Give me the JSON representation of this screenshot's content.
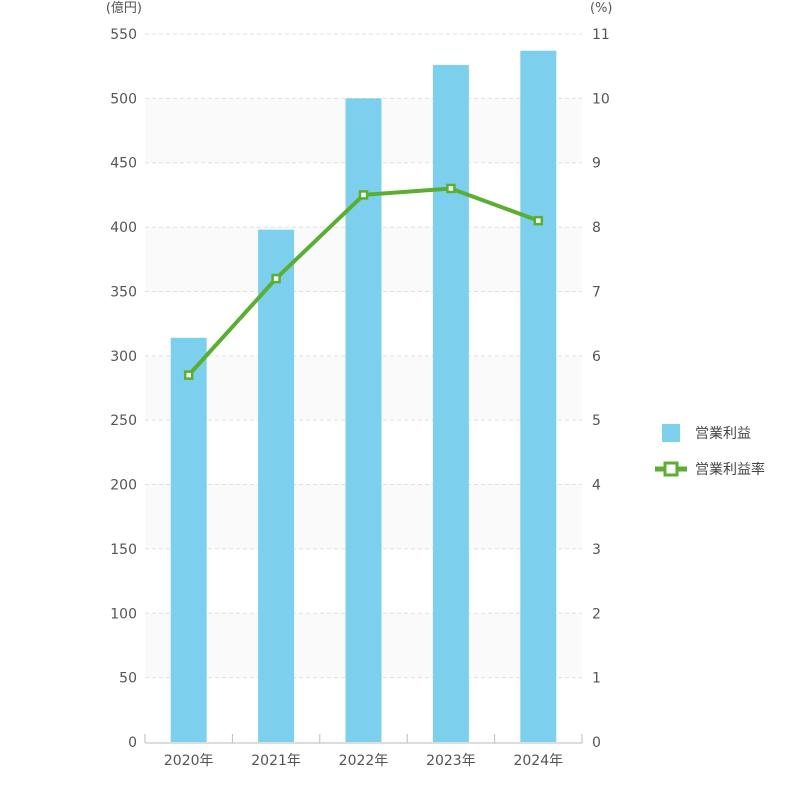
{
  "chart_data": {
    "type": "bar+line",
    "categories": [
      "2020年",
      "2021年",
      "2022年",
      "2023年",
      "2024年"
    ],
    "series": [
      {
        "name": "営業利益",
        "type": "bar",
        "axis": "left",
        "values": [
          314,
          398,
          500,
          526,
          537
        ],
        "color": "#7dcfee"
      },
      {
        "name": "営業利益率",
        "type": "line",
        "axis": "right",
        "values": [
          5.7,
          7.2,
          8.5,
          8.6,
          8.1
        ],
        "color": "#5aaf32"
      }
    ],
    "left_axis": {
      "unit": "(億円)",
      "ylim": [
        0,
        550
      ],
      "ticks": [
        0,
        50,
        100,
        150,
        200,
        250,
        300,
        350,
        400,
        450,
        500,
        550
      ]
    },
    "right_axis": {
      "unit": "(%)",
      "ylim": [
        0,
        11
      ],
      "ticks": [
        0,
        1,
        2,
        3,
        4,
        5,
        6,
        7,
        8,
        9,
        10,
        11
      ]
    },
    "grid": true,
    "legend_position": "right"
  }
}
